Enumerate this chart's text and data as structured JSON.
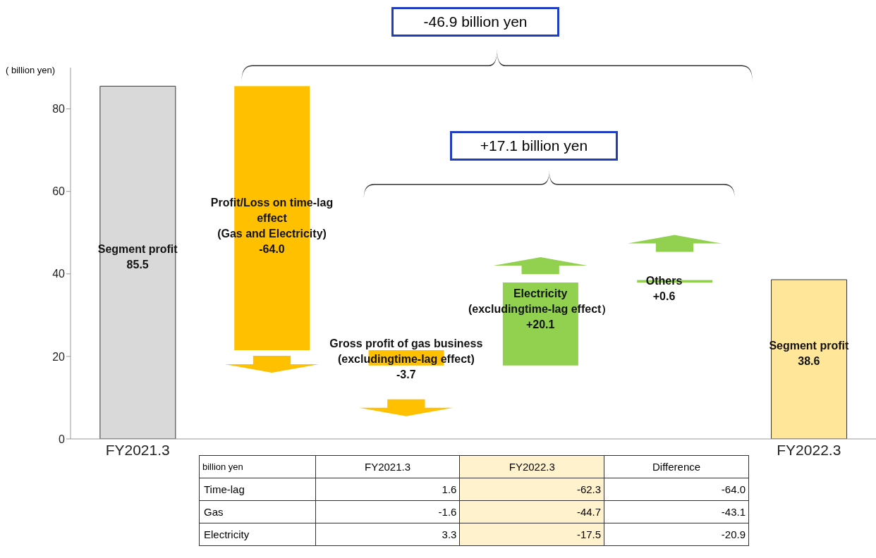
{
  "chart_data": [
    {
      "type": "bar",
      "categories": [
        "FY2021.3",
        null,
        null,
        null,
        null,
        "FY2022.3"
      ],
      "values": [
        85.5,
        -64.0,
        -3.7,
        20.1,
        0.6,
        38.6
      ],
      "base": [
        0,
        85.5,
        21.5,
        17.8,
        37.9,
        0
      ],
      "colors": [
        "#d9d9d9",
        "#ffc000",
        "#ffc000",
        "#92d050",
        "#92d050",
        "#ffe699"
      ],
      "value_labels": [
        "85.5",
        "-64.0",
        "-3.7",
        "+20.1",
        "+0.6",
        "38.6"
      ],
      "ylabel": "( billion yen)",
      "ylim": [
        0,
        90
      ],
      "yticks": [
        0,
        20,
        40,
        60,
        80
      ],
      "annotations": [
        "Segment profit",
        "Profit/Loss on time-lag\neffect\n(Gas and Electricity)",
        "Gross profit of gas business\n(excludingtime-lag effect)",
        "Electricity\n(excludingtime-lag effect）",
        "Others",
        "Segment profit",
        "-46.9 billion yen",
        "+17.1 billion yen"
      ]
    },
    {
      "type": "heatmap",
      "title": "billion  yen",
      "categories": [
        "FY2021.3",
        "FY2022.3",
        "Difference"
      ],
      "y_categories": [
        "Time-lag",
        "Gas",
        "Electricity"
      ],
      "colors": [
        "#ffffff",
        "#fff2cc",
        "#ffffff"
      ],
      "cell_labels": [
        [
          "1.6",
          "-62.3",
          "-64.0"
        ],
        [
          "-1.6",
          "-44.7",
          "-43.1"
        ],
        [
          "3.3",
          "-17.5",
          "-20.9"
        ]
      ],
      "cells": [
        [
          1.6,
          -62.3,
          -64.0
        ],
        [
          -1.6,
          -44.7,
          -43.1
        ],
        [
          3.3,
          -17.5,
          -20.9
        ]
      ]
    }
  ]
}
